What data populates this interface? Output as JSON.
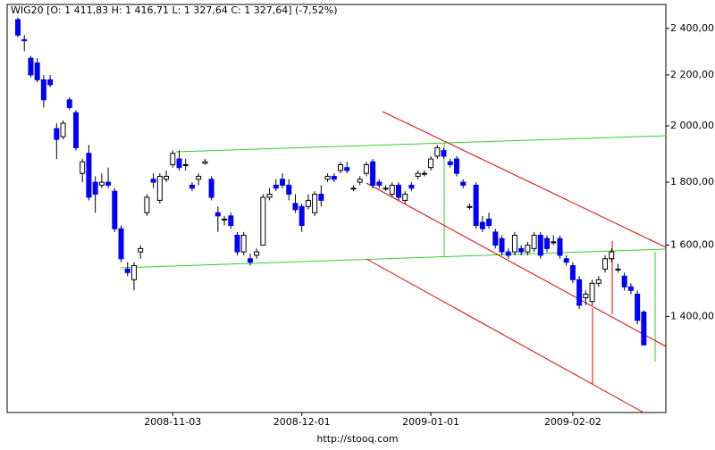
{
  "chart_data": {
    "type": "candlestick",
    "title": "WIG20 [O: 1 411,83  H: 1 416,71  L: 1 327,64  C: 1 327,64] (-7,52%)",
    "footer": "http://stooq.com",
    "log_scale": true,
    "up_color": "#ffffff",
    "down_color": "#0000ff",
    "ylim": [
      1170,
      2510
    ],
    "yticks": [
      {
        "value": 1400,
        "label": "1 400,00"
      },
      {
        "value": 1600,
        "label": "1 600,00"
      },
      {
        "value": 1800,
        "label": "1 800,00"
      },
      {
        "value": 2000,
        "label": "2 000,00"
      },
      {
        "value": 2200,
        "label": "2 200,00"
      },
      {
        "value": 2400,
        "label": "2 400,00"
      }
    ],
    "categories": [
      null,
      null,
      null,
      null,
      null,
      null,
      null,
      null,
      null,
      null,
      null,
      null,
      null,
      null,
      null,
      null,
      null,
      null,
      null,
      null,
      null,
      null,
      null,
      null,
      "2008-11-03",
      null,
      null,
      null,
      null,
      null,
      null,
      null,
      null,
      null,
      null,
      null,
      null,
      null,
      null,
      null,
      null,
      null,
      null,
      null,
      "2008-12-01",
      null,
      null,
      null,
      null,
      null,
      null,
      null,
      null,
      null,
      null,
      null,
      null,
      null,
      null,
      null,
      null,
      null,
      null,
      null,
      "2009-01-01",
      null,
      null,
      null,
      null,
      null,
      null,
      null,
      null,
      null,
      null,
      null,
      null,
      null,
      null,
      null,
      null,
      null,
      null,
      null,
      null,
      null,
      "2009-02-02",
      null,
      null,
      null,
      null,
      null,
      null,
      null,
      null,
      null,
      null,
      null
    ],
    "ohlc": [
      [
        2440,
        2450,
        2360,
        2370
      ],
      [
        2350,
        2370,
        2300,
        2345
      ],
      [
        2270,
        2280,
        2190,
        2200
      ],
      [
        2250,
        2270,
        2170,
        2180
      ],
      [
        2180,
        2200,
        2070,
        2100
      ],
      [
        2180,
        2200,
        2150,
        2160
      ],
      [
        1990,
        2010,
        1880,
        1950
      ],
      [
        1960,
        2020,
        1950,
        2010
      ],
      [
        2100,
        2110,
        2060,
        2070
      ],
      [
        2050,
        2060,
        1910,
        1920
      ],
      [
        1830,
        1880,
        1800,
        1870
      ],
      [
        1900,
        1930,
        1740,
        1750
      ],
      [
        1800,
        1820,
        1700,
        1760
      ],
      [
        1790,
        1830,
        1780,
        1800
      ],
      [
        1800,
        1850,
        1780,
        1790
      ],
      [
        1770,
        1780,
        1640,
        1650
      ],
      [
        1650,
        1660,
        1550,
        1560
      ],
      [
        1530,
        1550,
        1510,
        1520
      ],
      [
        1500,
        1550,
        1470,
        1540
      ],
      [
        1580,
        1600,
        1560,
        1590
      ],
      [
        1700,
        1760,
        1690,
        1750
      ],
      [
        1810,
        1830,
        1780,
        1800
      ],
      [
        1740,
        1830,
        1730,
        1820
      ],
      [
        1810,
        1840,
        1800,
        1820
      ],
      [
        1860,
        1910,
        1850,
        1900
      ],
      [
        1880,
        1910,
        1840,
        1850
      ],
      [
        1860,
        1880,
        1840,
        1860
      ],
      [
        1790,
        1800,
        1770,
        1780
      ],
      [
        1810,
        1830,
        1790,
        1820
      ],
      [
        1865,
        1880,
        1860,
        1870
      ],
      [
        1810,
        1820,
        1740,
        1750
      ],
      [
        1700,
        1720,
        1640,
        1690
      ],
      [
        1680,
        1690,
        1660,
        1680
      ],
      [
        1690,
        1700,
        1650,
        1660
      ],
      [
        1630,
        1640,
        1570,
        1580
      ],
      [
        1580,
        1640,
        1570,
        1630
      ],
      [
        1560,
        1575,
        1540,
        1550
      ],
      [
        1570,
        1590,
        1560,
        1580
      ],
      [
        1600,
        1760,
        1600,
        1750
      ],
      [
        1750,
        1780,
        1740,
        1760
      ],
      [
        1790,
        1810,
        1770,
        1780
      ],
      [
        1810,
        1830,
        1780,
        1790
      ],
      [
        1790,
        1810,
        1740,
        1760
      ],
      [
        1730,
        1760,
        1700,
        1710
      ],
      [
        1720,
        1730,
        1640,
        1660
      ],
      [
        1720,
        1760,
        1710,
        1740
      ],
      [
        1700,
        1770,
        1690,
        1760
      ],
      [
        1760,
        1790,
        1720,
        1740
      ],
      [
        1810,
        1830,
        1800,
        1820
      ],
      [
        1820,
        1830,
        1800,
        1810
      ],
      [
        1840,
        1870,
        1830,
        1860
      ],
      [
        1850,
        1870,
        1830,
        1840
      ],
      [
        1780,
        1790,
        1770,
        1780
      ],
      [
        1800,
        1820,
        1790,
        1810
      ],
      [
        1830,
        1870,
        1820,
        1860
      ],
      [
        1870,
        1880,
        1780,
        1790
      ],
      [
        1800,
        1810,
        1780,
        1790
      ],
      [
        1780,
        1790,
        1770,
        1780
      ],
      [
        1760,
        1800,
        1750,
        1790
      ],
      [
        1790,
        1800,
        1740,
        1750
      ],
      [
        1740,
        1770,
        1730,
        1760
      ],
      [
        1790,
        1800,
        1770,
        1780
      ],
      [
        1820,
        1840,
        1810,
        1830
      ],
      [
        1830,
        1840,
        1820,
        1830
      ],
      [
        1850,
        1890,
        1840,
        1880
      ],
      [
        1890,
        1930,
        1880,
        1920
      ],
      [
        1910,
        1920,
        1880,
        1890
      ],
      [
        1870,
        1880,
        1850,
        1860
      ],
      [
        1880,
        1890,
        1820,
        1830
      ],
      [
        1800,
        1810,
        1780,
        1790
      ],
      [
        1720,
        1730,
        1710,
        1720
      ],
      [
        1790,
        1800,
        1650,
        1660
      ],
      [
        1670,
        1690,
        1640,
        1650
      ],
      [
        1680,
        1700,
        1650,
        1660
      ],
      [
        1640,
        1650,
        1590,
        1600
      ],
      [
        1620,
        1630,
        1570,
        1580
      ],
      [
        1580,
        1590,
        1560,
        1570
      ],
      [
        1580,
        1640,
        1570,
        1630
      ],
      [
        1590,
        1600,
        1570,
        1580
      ],
      [
        1580,
        1610,
        1570,
        1600
      ],
      [
        1590,
        1640,
        1580,
        1630
      ],
      [
        1630,
        1640,
        1560,
        1570
      ],
      [
        1620,
        1630,
        1580,
        1590
      ],
      [
        1610,
        1630,
        1600,
        1610
      ],
      [
        1620,
        1630,
        1560,
        1570
      ],
      [
        1560,
        1570,
        1540,
        1550
      ],
      [
        1540,
        1550,
        1490,
        1500
      ],
      [
        1500,
        1510,
        1420,
        1430
      ],
      [
        1450,
        1470,
        1430,
        1460
      ],
      [
        1440,
        1500,
        1430,
        1490
      ],
      [
        1490,
        1510,
        1480,
        1500
      ],
      [
        1530,
        1570,
        1520,
        1560
      ],
      [
        1560,
        1590,
        1550,
        1580
      ],
      [
        1530,
        1545,
        1520,
        1530
      ],
      [
        1510,
        1520,
        1470,
        1480
      ],
      [
        1480,
        1490,
        1460,
        1470
      ],
      [
        1460,
        1470,
        1380,
        1390
      ],
      [
        1411.83,
        1416.71,
        1327.64,
        1327.64
      ]
    ]
  }
}
